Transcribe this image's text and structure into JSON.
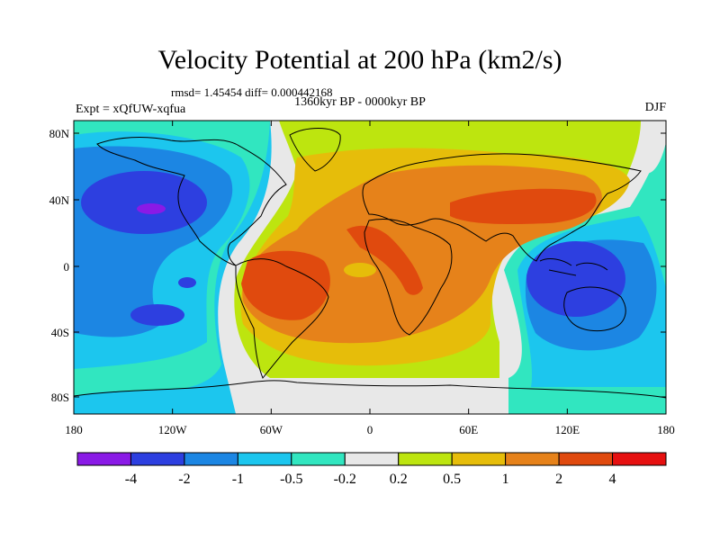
{
  "map": {
    "title": "Velocity Potential at 200 hPa (km2/s)",
    "stats": "rmsd= 1.45454 diff= 0.000442168",
    "subtitle": "1360kyr BP - 0000kyr BP",
    "left_label": "Expt = xQfUW-xqfua",
    "right_label": "DJF",
    "lat_ticks": [
      "80N",
      "40N",
      "0",
      "40S",
      "80S"
    ],
    "lon_ticks": [
      "180",
      "120W",
      "60W",
      "0",
      "60E",
      "120E",
      "180"
    ]
  },
  "colorbar": {
    "colors": [
      "#8a1ae6",
      "#2d3fe0",
      "#1c86e3",
      "#1cc6ee",
      "#31e6c0",
      "#e8e8e8",
      "#bde50f",
      "#e6bd0a",
      "#e6821a",
      "#e04a0e",
      "#e61010"
    ],
    "labels": [
      "-4",
      "-2",
      "-1",
      "-0.5",
      "-0.2",
      "0.2",
      "0.5",
      "1",
      "2",
      "4"
    ]
  }
}
